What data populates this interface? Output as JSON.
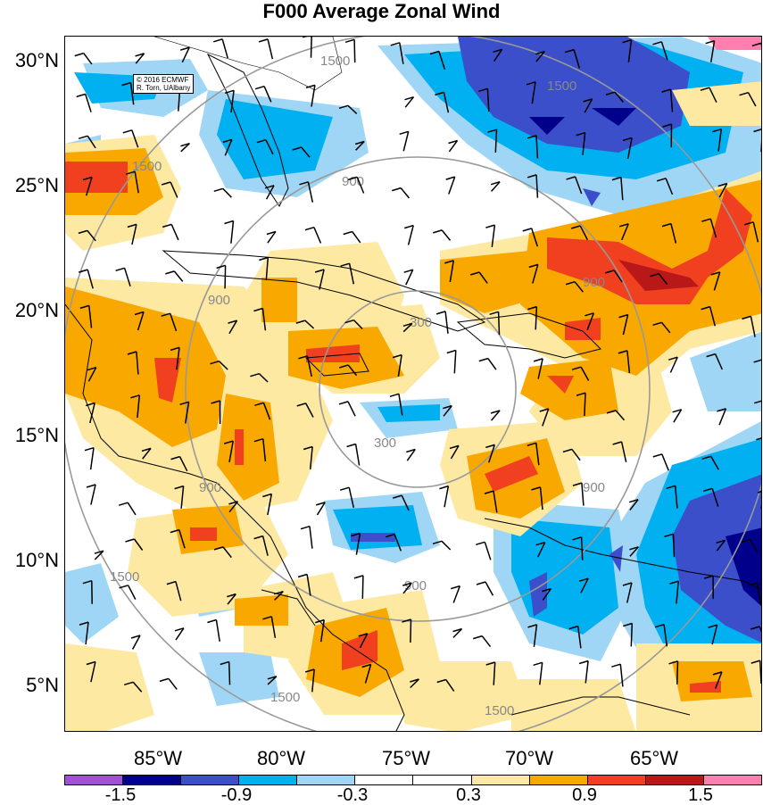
{
  "title": "F000 Average Zonal Wind",
  "credit": {
    "line1": "© 2016 ECMWF",
    "line2": "R. Torn, UAlbany"
  },
  "lat_labels": [
    "30°N",
    "25°N",
    "20°N",
    "15°N",
    "10°N",
    "5°N"
  ],
  "lon_labels": [
    "85°W",
    "80°W",
    "75°W",
    "70°W",
    "65°W"
  ],
  "range_ring_labels": [
    "300",
    "300",
    "900",
    "900",
    "900",
    "900",
    "900",
    "900",
    "1500",
    "1500",
    "1500",
    "1500",
    "1500",
    "1500"
  ],
  "colorbar": {
    "labels": [
      "-1.5",
      "-0.9",
      "-0.3",
      "0.3",
      "0.9",
      "1.5"
    ],
    "colors": [
      "#a34fd6",
      "#00008b",
      "#3a4fc9",
      "#00b0f0",
      "#9fd6f5",
      "#ffffff",
      "#ffffff",
      "#fde9a2",
      "#f9a800",
      "#f04020",
      "#b81818",
      "#ff80b0"
    ]
  },
  "legend_colors": {
    "strong_negative": "#3a4fc9",
    "moderate_negative": "#00b0f0",
    "weak_negative": "#9fd6f5",
    "weak_positive": "#fde9a2",
    "moderate_positive": "#f9a800",
    "strong_positive": "#f04020"
  }
}
